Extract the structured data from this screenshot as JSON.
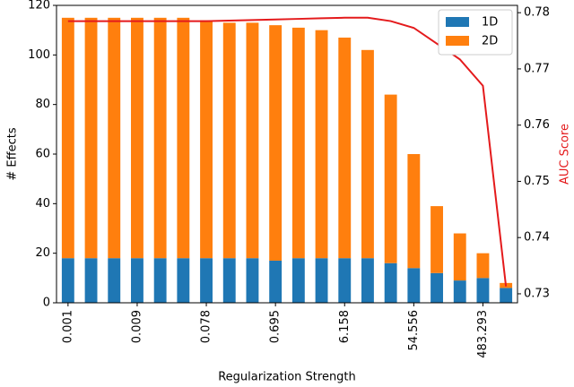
{
  "chart_data": {
    "type": "bar",
    "stacked": true,
    "x_label": "Regularization Strength",
    "y_label": "# Effects",
    "y2_label": "AUC Score",
    "categories": [
      "0.001",
      null,
      null,
      "0.009",
      null,
      null,
      "0.078",
      null,
      null,
      "0.695",
      null,
      null,
      "6.158",
      null,
      null,
      "54.556",
      null,
      null,
      "483.293",
      null
    ],
    "series": [
      {
        "name": "1D",
        "color": "#1f77b4",
        "values": [
          18,
          18,
          18,
          18,
          18,
          18,
          18,
          18,
          18,
          17,
          18,
          18,
          18,
          18,
          16,
          14,
          12,
          9,
          10,
          6
        ]
      },
      {
        "name": "2D",
        "color": "#ff7f0e",
        "values": [
          97,
          97,
          97,
          97,
          97,
          97,
          96,
          95,
          95,
          95,
          93,
          92,
          89,
          84,
          68,
          46,
          27,
          19,
          10,
          2
        ]
      }
    ],
    "line": {
      "color": "#e41a1c",
      "axis": "y2",
      "values": [
        0.7785,
        0.7785,
        0.7785,
        0.7785,
        0.7785,
        0.7785,
        0.7785,
        0.7786,
        0.7787,
        0.7788,
        0.7789,
        0.779,
        0.7791,
        0.7791,
        0.7785,
        0.7773,
        0.7745,
        0.7717,
        0.767,
        0.7313
      ]
    },
    "ylim": [
      0,
      120
    ],
    "yticks": [
      0,
      20,
      40,
      60,
      80,
      100,
      120
    ],
    "y2lim": [
      0.7284,
      0.7813
    ],
    "y2ticks": [
      0.73,
      0.74,
      0.75,
      0.76,
      0.77,
      0.78
    ],
    "legend": "upper right"
  }
}
